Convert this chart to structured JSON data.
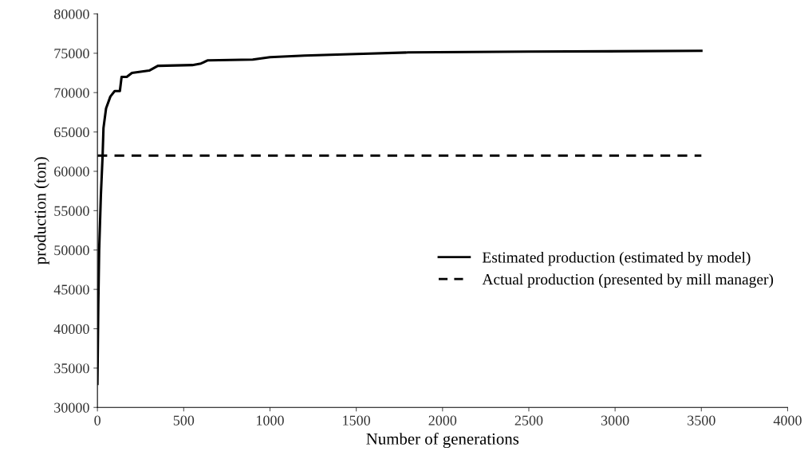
{
  "chart_data": {
    "type": "line",
    "xlabel": "Number of generations",
    "ylabel": "production (ton)",
    "xlim": [
      0,
      4000
    ],
    "xticks": [
      0,
      500,
      1000,
      1500,
      2000,
      2500,
      3000,
      3500,
      4000
    ],
    "ylim": [
      30000,
      80000
    ],
    "yticks": [
      30000,
      35000,
      40000,
      45000,
      50000,
      55000,
      60000,
      65000,
      70000,
      75000,
      80000
    ],
    "grid": false,
    "legend": "right",
    "marker": "none",
    "series": [
      {
        "name": "Estimated production (estimated by model)",
        "color": "#000000",
        "line_style": "solid",
        "x": [
          0,
          5,
          10,
          20,
          30,
          35,
          50,
          75,
          100,
          130,
          140,
          170,
          200,
          300,
          350,
          550,
          600,
          640,
          900,
          1000,
          1200,
          1500,
          1800,
          2500,
          3500
        ],
        "values": [
          33000,
          43000,
          50000,
          57000,
          62000,
          65500,
          68000,
          69500,
          70200,
          70200,
          72000,
          72000,
          72500,
          72800,
          73400,
          73500,
          73700,
          74100,
          74200,
          74500,
          74700,
          74900,
          75100,
          75200,
          75300
        ]
      },
      {
        "name": "Actual production (presented by mill manager)",
        "color": "#000000",
        "line_style": "dashed",
        "x": [
          0,
          3500
        ],
        "values": [
          62000,
          62000
        ]
      }
    ]
  }
}
